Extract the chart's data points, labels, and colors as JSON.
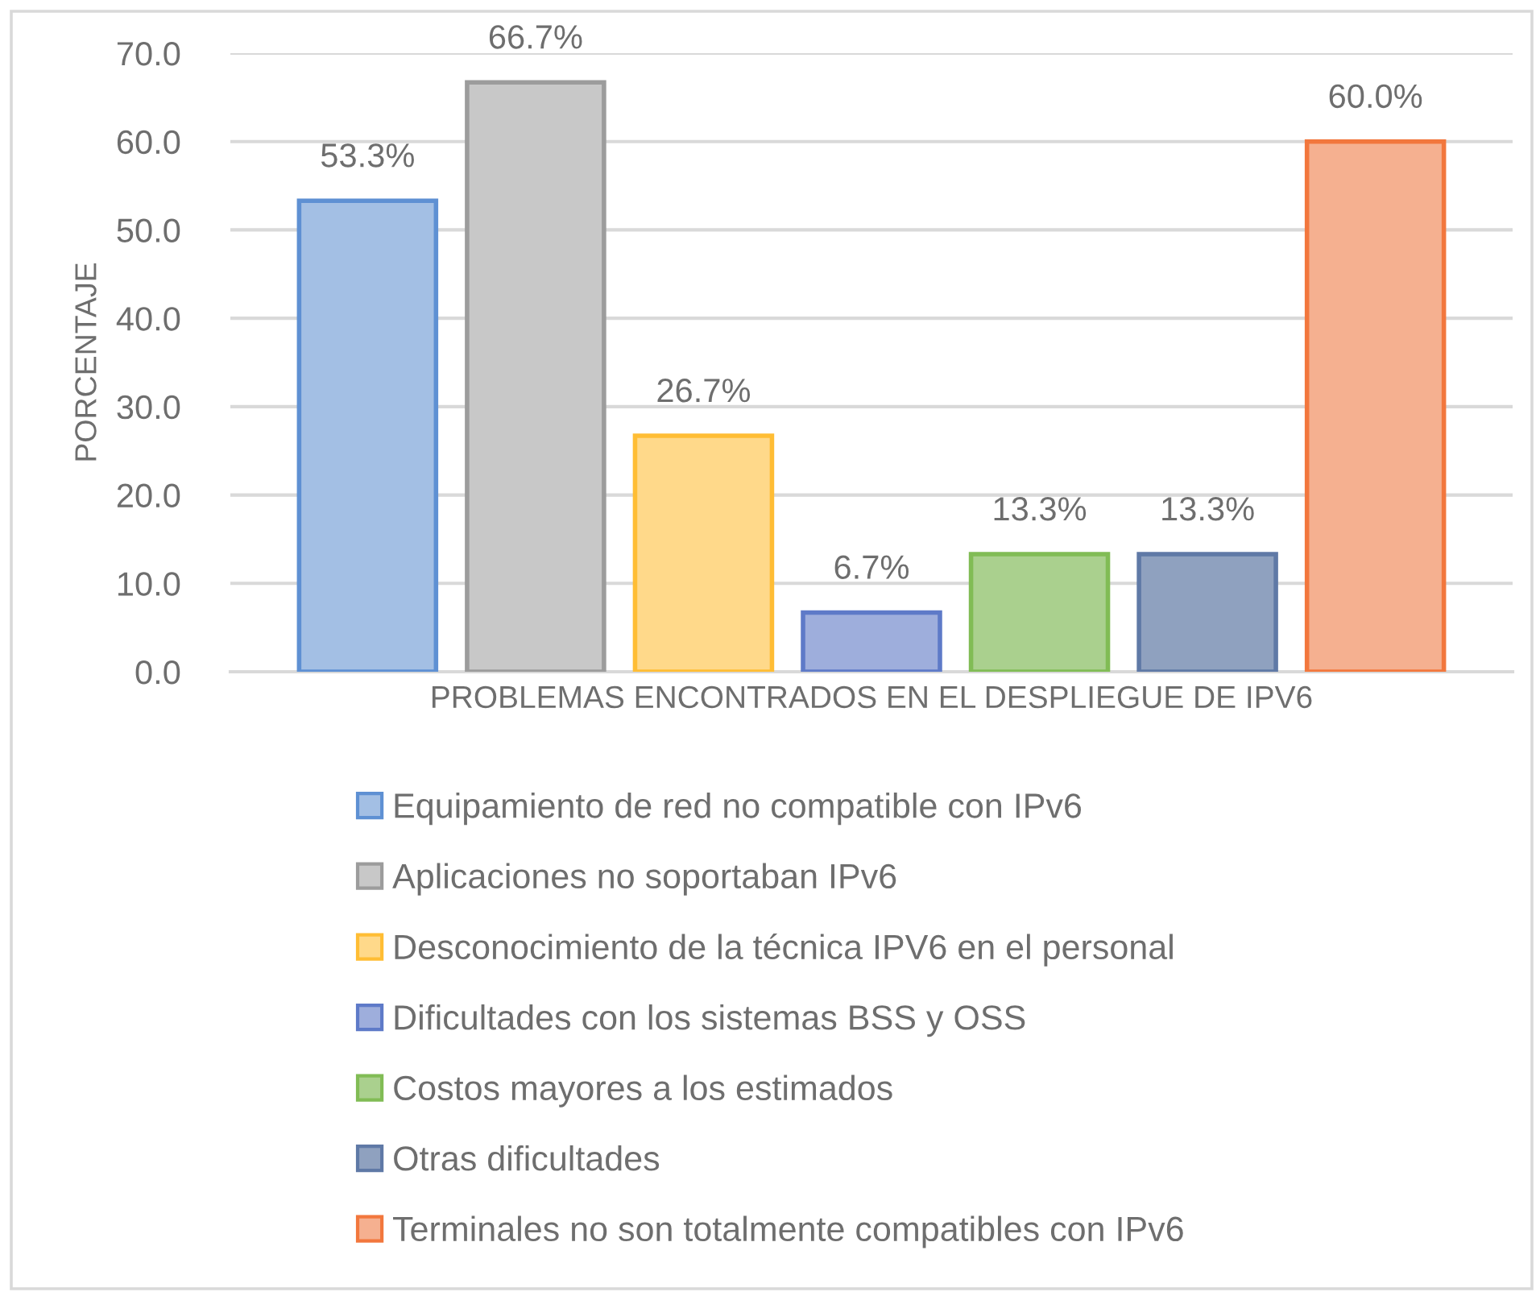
{
  "chart_data": {
    "type": "bar",
    "ylabel": "PORCENTAJE",
    "categories": [
      "PROBLEMAS ENCONTRADOS EN EL DESPLIEGUE DE IPV6"
    ],
    "series": [
      {
        "name": "Equipamiento de red no compatible con IPv6",
        "color": "#a3bfe4",
        "values": [
          53.3
        ],
        "value_labels": [
          "53.3%"
        ]
      },
      {
        "name": "Aplicaciones no soportaban IPv6",
        "color": "#c8c8c8",
        "values": [
          66.7
        ],
        "value_labels": [
          "66.7%"
        ]
      },
      {
        "name": "Desconocimiento de la técnica IPV6 en el personal",
        "color": "#ffd98a",
        "values": [
          26.7
        ],
        "value_labels": [
          "26.7%"
        ]
      },
      {
        "name": "Dificultades con los sistemas BSS y OSS",
        "color": "#9eaedc",
        "values": [
          6.7
        ],
        "value_labels": [
          "6.7%"
        ]
      },
      {
        "name": "Costos mayores a los estimados",
        "color": "#aad08e",
        "values": [
          13.3
        ],
        "value_labels": [
          "13.3%"
        ]
      },
      {
        "name": "Otras dificultades",
        "color": "#8fa1bf",
        "values": [
          13.3
        ],
        "value_labels": [
          "13.3%"
        ]
      },
      {
        "name": "Terminales no son totalmente compatibles con IPv6",
        "color": "#f5b090",
        "values": [
          60.0
        ],
        "value_labels": [
          "60.0%"
        ]
      }
    ],
    "ylim": [
      0,
      70
    ],
    "yticks": [
      {
        "value": 0,
        "label": "0.0"
      },
      {
        "value": 10,
        "label": "10.0"
      },
      {
        "value": 20,
        "label": "20.0"
      },
      {
        "value": 30,
        "label": "30.0"
      },
      {
        "value": 40,
        "label": "40.0"
      },
      {
        "value": 50,
        "label": "50.0"
      },
      {
        "value": 60,
        "label": "60.0"
      },
      {
        "value": 70,
        "label": "70.0"
      }
    ],
    "grid": "y",
    "legend": "bottom"
  }
}
